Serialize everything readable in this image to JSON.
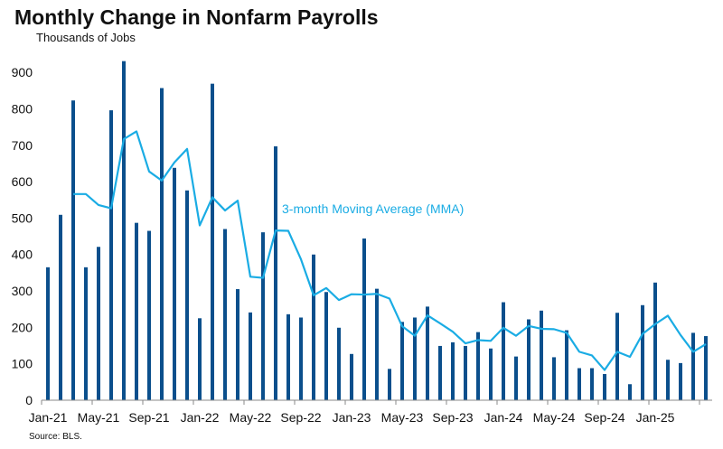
{
  "title": "Monthly Change in Nonfarm Payrolls",
  "subtitle": "Thousands of Jobs",
  "source": "Source: BLS.",
  "chart_data": {
    "type": "bar",
    "ylim": [
      0,
      950
    ],
    "yticks": [
      0,
      100,
      200,
      300,
      400,
      500,
      600,
      700,
      800,
      900
    ],
    "xtick_labels": [
      "Jan-21",
      "May-21",
      "Sep-21",
      "Jan-22",
      "May-22",
      "Sep-22",
      "Jan-23",
      "May-23",
      "Sep-23",
      "Jan-24",
      "May-24",
      "Sep-24",
      "Jan-25"
    ],
    "annotations": [
      {
        "text": "3-month Moving Average (MMA)"
      }
    ],
    "colors": {
      "bars": "#0b4f8c",
      "line": "#1aace4"
    },
    "series": [
      {
        "type": "bar",
        "values": [
          365,
          509,
          823,
          365,
          421,
          796,
          931,
          487,
          465,
          857,
          638,
          576,
          225,
          869,
          470,
          305,
          241,
          461,
          697,
          236,
          227,
          400,
          297,
          199,
          127,
          444,
          306,
          86,
          215,
          227,
          257,
          149,
          159,
          149,
          187,
          142,
          269,
          120,
          222,
          246,
          118,
          192,
          88,
          88,
          72,
          240,
          44,
          261,
          323,
          111,
          102,
          185,
          176
        ]
      },
      {
        "type": "line",
        "values": [
          null,
          null,
          566,
          566,
          536,
          527,
          717,
          738,
          628,
          603,
          653,
          690,
          480,
          557,
          521,
          548,
          339,
          336,
          466,
          465,
          387,
          288,
          308,
          275,
          291,
          290,
          292,
          279,
          203,
          177,
          233,
          211,
          188,
          156,
          165,
          163,
          199,
          177,
          204,
          196,
          195,
          185,
          133,
          123,
          83,
          133,
          119,
          182,
          209,
          232,
          179,
          133,
          154
        ]
      }
    ]
  }
}
